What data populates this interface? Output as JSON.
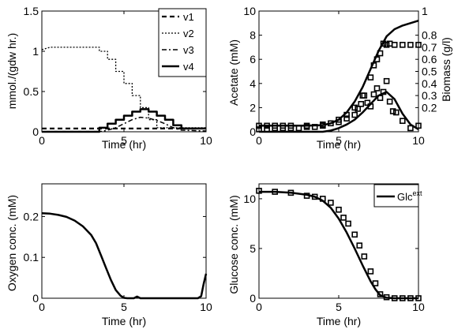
{
  "chart_data": [
    {
      "type": "line",
      "xlabel": "Time (hr)",
      "ylabel": "mmol./(gdw hr.)",
      "xlim": [
        0,
        10
      ],
      "ylim": [
        0,
        1.5
      ],
      "xticks": [
        "0",
        "5",
        "10"
      ],
      "yticks": [
        "0",
        "0.5",
        "1",
        "1.5"
      ],
      "legend_position": "top-right",
      "series": [
        {
          "name": "v1",
          "style": "dashed",
          "x": [
            0,
            2,
            4,
            5,
            6,
            7,
            8,
            9,
            10
          ],
          "y": [
            0.04,
            0.04,
            0.04,
            0.04,
            0.04,
            0.04,
            0.04,
            0.04,
            0.04
          ]
        },
        {
          "name": "v2",
          "style": "dotted",
          "x": [
            0,
            0.5,
            3.5,
            3.5,
            4,
            4,
            4.5,
            4.5,
            5,
            5,
            5.5,
            5.5,
            6,
            6,
            6.5,
            6.5,
            7,
            7,
            10
          ],
          "y": [
            1.02,
            1.05,
            1.05,
            1.0,
            1.0,
            0.9,
            0.9,
            0.75,
            0.75,
            0.6,
            0.6,
            0.45,
            0.45,
            0.3,
            0.3,
            0.15,
            0.15,
            0.05,
            0.05
          ]
        },
        {
          "name": "v3",
          "style": "dashdot",
          "x": [
            0,
            3.5,
            4,
            4.5,
            5,
            5.5,
            6,
            6.5,
            7,
            7.5,
            8,
            8.5,
            10
          ],
          "y": [
            0,
            0,
            0.02,
            0.05,
            0.1,
            0.15,
            0.18,
            0.17,
            0.14,
            0.1,
            0.05,
            0.02,
            0.01
          ]
        },
        {
          "name": "v4",
          "style": "solid",
          "x": [
            0,
            3.5,
            3.5,
            4,
            4,
            4.5,
            4.5,
            5,
            5,
            5.5,
            5.5,
            6,
            6,
            6.5,
            6.5,
            7,
            7,
            7.5,
            7.5,
            8,
            8,
            8.5,
            8.5,
            10
          ],
          "y": [
            0,
            0,
            0.05,
            0.05,
            0.1,
            0.1,
            0.15,
            0.15,
            0.2,
            0.2,
            0.25,
            0.25,
            0.28,
            0.28,
            0.25,
            0.25,
            0.2,
            0.2,
            0.15,
            0.15,
            0.08,
            0.08,
            0.04,
            0.04
          ]
        }
      ]
    },
    {
      "type": "line",
      "xlabel": "Time (hr)",
      "ylabel": "Acetate (mM)",
      "y2label": "Biomass (g/l)",
      "xlim": [
        0,
        10
      ],
      "ylim": [
        0,
        10
      ],
      "y2lim": [
        0,
        1
      ],
      "xticks": [
        "0",
        "5",
        "10"
      ],
      "yticks": [
        "0",
        "2",
        "4",
        "6",
        "8",
        "10"
      ],
      "y2ticks": [
        "0.2",
        "0.3",
        "0.4",
        "0.5",
        "0.6",
        "0.7",
        "0.8",
        "1"
      ],
      "y2tick_values": [
        0.2,
        0.3,
        0.4,
        0.5,
        0.6,
        0.7,
        0.8,
        1
      ],
      "series": [
        {
          "style": "solid",
          "axis": "left",
          "x": [
            0,
            4,
            4.5,
            5,
            5.5,
            6,
            6.5,
            7,
            7.5,
            8,
            8.5,
            9,
            9.5,
            10
          ],
          "y": [
            0,
            0,
            0.1,
            0.3,
            0.6,
            1.0,
            1.6,
            2.3,
            3.0,
            3.3,
            2.7,
            1.5,
            0.6,
            0.2
          ]
        },
        {
          "style": "solid",
          "axis": "right",
          "x": [
            0,
            3,
            4,
            4.5,
            5,
            5.5,
            6,
            6.5,
            7,
            7.5,
            8,
            8.5,
            9,
            9.5,
            10
          ],
          "y": [
            0.05,
            0.05,
            0.055,
            0.07,
            0.1,
            0.16,
            0.25,
            0.37,
            0.52,
            0.67,
            0.79,
            0.85,
            0.88,
            0.9,
            0.92
          ]
        },
        {
          "style": "square-markers",
          "axis": "left",
          "x": [
            0,
            0.5,
            1,
            1.5,
            2,
            2.5,
            3,
            3.5,
            4,
            4.5,
            5,
            5.5,
            6,
            6.2,
            6.4,
            6.6,
            6.8,
            7,
            7.2,
            7.4,
            7.6,
            7.8,
            8,
            8.2,
            8.4,
            8.6,
            9,
            9.5,
            10
          ],
          "y": [
            0.2,
            0.2,
            0.3,
            0.3,
            0.3,
            0.3,
            0.4,
            0.4,
            0.5,
            0.7,
            0.8,
            1.1,
            1.4,
            1.9,
            2.3,
            3.0,
            2.4,
            2.1,
            3.1,
            3.6,
            2.8,
            3.3,
            4.2,
            2.5,
            1.7,
            1.6,
            0.9,
            0.3,
            0.5
          ]
        },
        {
          "style": "square-markers",
          "axis": "right",
          "x": [
            0,
            0.5,
            1,
            1.5,
            2,
            3,
            4,
            5,
            5.5,
            6,
            6.5,
            7,
            7.2,
            7.4,
            7.6,
            7.8,
            8,
            8.2,
            8.5,
            9,
            9.5,
            10
          ],
          "y": [
            0.05,
            0.05,
            0.05,
            0.05,
            0.05,
            0.05,
            0.06,
            0.1,
            0.14,
            0.2,
            0.3,
            0.45,
            0.55,
            0.6,
            0.65,
            0.73,
            0.72,
            0.73,
            0.72,
            0.72,
            0.72,
            0.72
          ]
        }
      ]
    },
    {
      "type": "line",
      "xlabel": "Time (hr)",
      "ylabel": "Oxygen conc. (mM)",
      "xlim": [
        0,
        10
      ],
      "ylim": [
        0,
        0.28
      ],
      "xticks": [
        "0",
        "5",
        "10"
      ],
      "yticks": [
        "0",
        "0.1",
        "0.2"
      ],
      "series": [
        {
          "style": "solid",
          "x": [
            0,
            0.5,
            1,
            1.5,
            2,
            2.5,
            3,
            3.3,
            3.6,
            3.9,
            4.2,
            4.5,
            4.8,
            5.0,
            5.2,
            5.6,
            5.8,
            6.0,
            6.3,
            9.5,
            9.7,
            9.85,
            10
          ],
          "y": [
            0.208,
            0.207,
            0.204,
            0.199,
            0.19,
            0.176,
            0.155,
            0.135,
            0.105,
            0.075,
            0.045,
            0.02,
            0.006,
            0.001,
            0,
            0,
            0.004,
            0,
            0,
            0,
            0.005,
            0.035,
            0.06
          ]
        }
      ]
    },
    {
      "type": "line",
      "xlabel": "Time (hr)",
      "ylabel": "Glucose conc. (mM)",
      "xlim": [
        0,
        10
      ],
      "ylim": [
        0,
        11.5
      ],
      "xticks": [
        "0",
        "5",
        "10"
      ],
      "yticks": [
        "0",
        "5",
        "10"
      ],
      "legend_position": "top-right",
      "legend_label": "Glc",
      "legend_sup": "ext",
      "series": [
        {
          "name": "Glc ext",
          "style": "solid",
          "x": [
            0,
            1,
            2,
            3,
            3.5,
            4,
            4.5,
            5,
            5.5,
            6,
            6.5,
            7,
            7.3,
            7.6,
            8,
            8.5,
            10
          ],
          "y": [
            10.7,
            10.7,
            10.6,
            10.4,
            10.2,
            9.8,
            9.1,
            8.0,
            6.6,
            5.0,
            3.3,
            1.7,
            0.9,
            0.3,
            0.05,
            0,
            0
          ]
        },
        {
          "style": "square-markers",
          "x": [
            0,
            1,
            2,
            3,
            3.5,
            4,
            4.5,
            5,
            5.3,
            5.6,
            6,
            6.3,
            6.6,
            7,
            7.3,
            7.6,
            8,
            8.5,
            9,
            9.5,
            10
          ],
          "y": [
            10.8,
            10.7,
            10.6,
            10.3,
            10.2,
            10.0,
            9.6,
            8.9,
            8.1,
            7.5,
            6.4,
            5.3,
            4.2,
            2.7,
            1.5,
            0.4,
            0.1,
            0.0,
            0.0,
            0.0,
            0.0
          ]
        }
      ]
    }
  ]
}
